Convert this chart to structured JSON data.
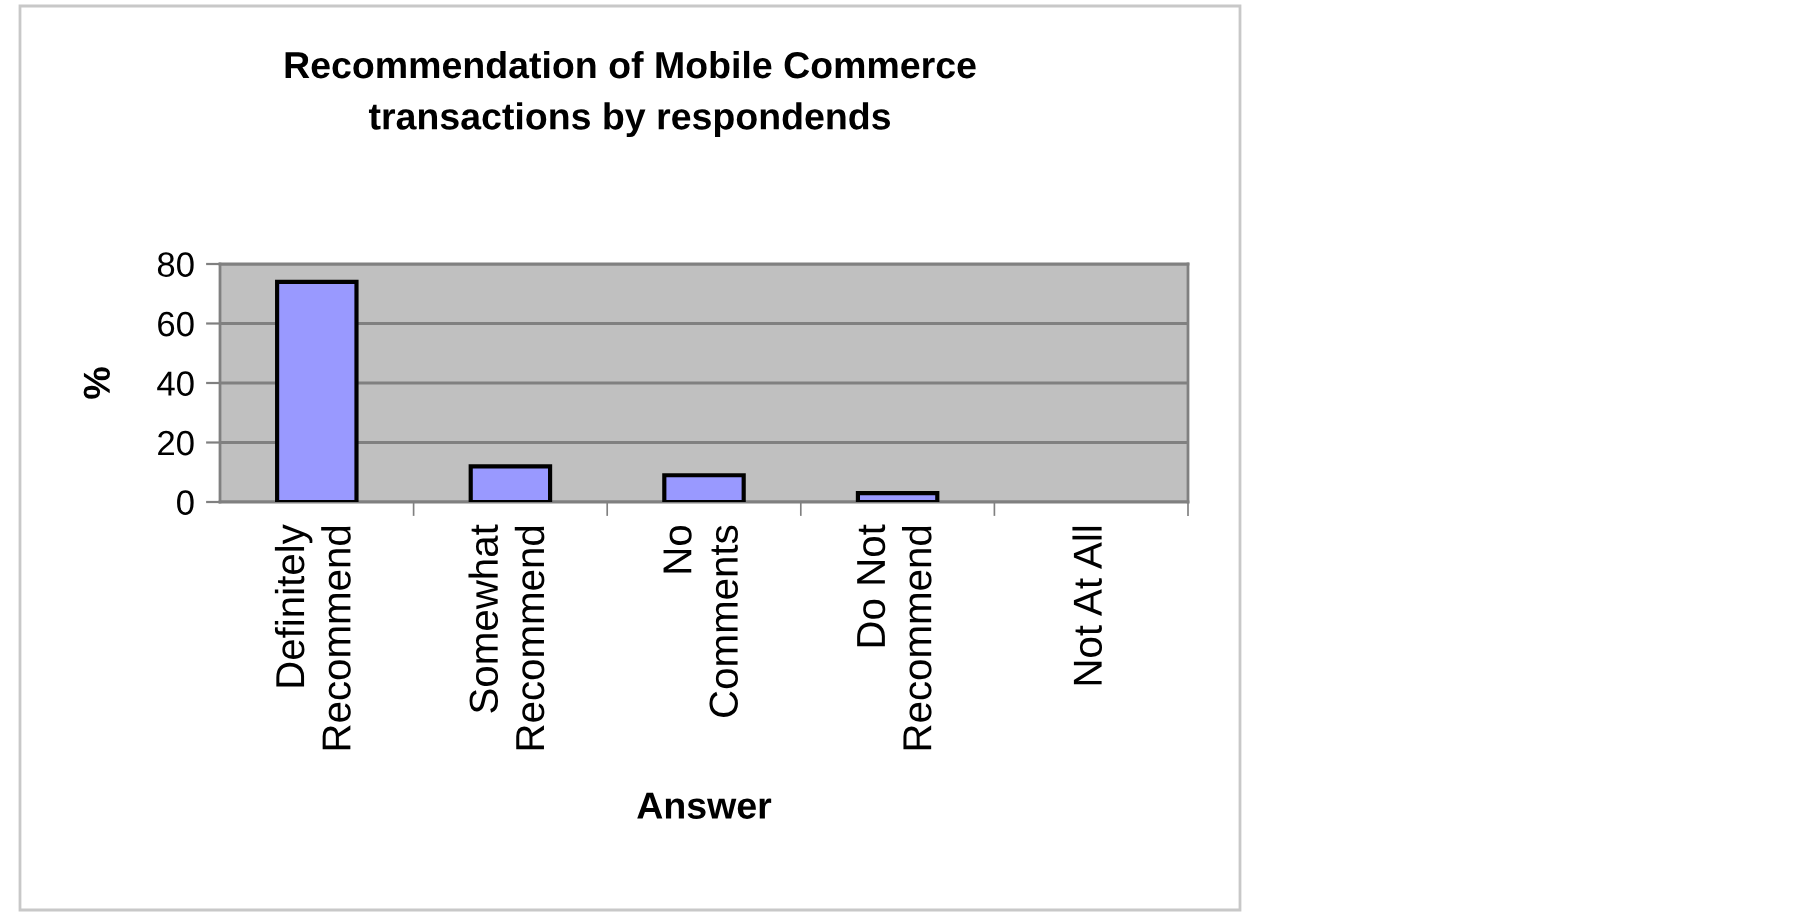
{
  "chart_data": {
    "type": "bar",
    "title": "Recommendation of Mobile Commerce\ntransactions by respondends",
    "xlabel": "Answer",
    "ylabel": "%",
    "categories": [
      "Definitely\nRecommend",
      "Somewhat\nRecommend",
      "No\nComments",
      "Do Not\nRecommend",
      "Not At All"
    ],
    "values": [
      74,
      12,
      9,
      3,
      0
    ],
    "color": "#9999ff",
    "ylim": [
      0,
      80
    ],
    "yticks": [
      0,
      20,
      40,
      60,
      80
    ],
    "grid": "y",
    "legend": false
  }
}
